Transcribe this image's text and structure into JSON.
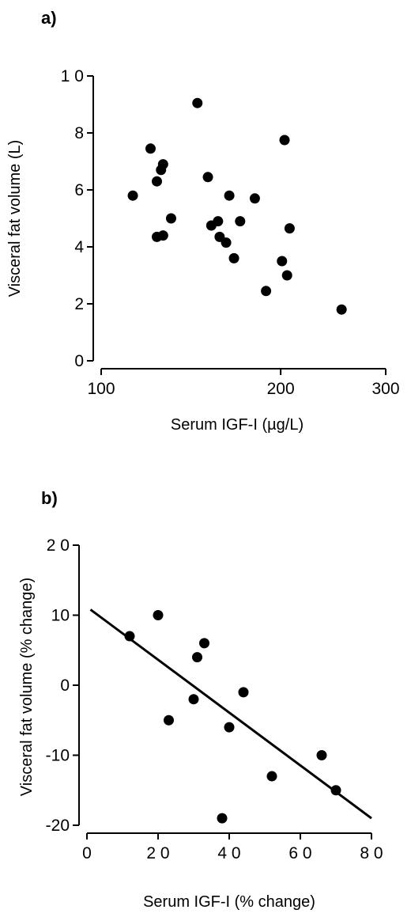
{
  "chart_data": [
    {
      "panel_label": "a)",
      "type": "scatter",
      "xlabel": "Serum IGF-I (µg/L)",
      "ylabel": "Visceral fat volume (L)",
      "xscale": "log",
      "xlim": [
        100,
        300
      ],
      "ylim": [
        0,
        10
      ],
      "xticks": [
        100,
        200,
        300
      ],
      "xtick_labels": [
        "100",
        "200",
        "300"
      ],
      "yticks": [
        0,
        2,
        4,
        6,
        8,
        10
      ],
      "ytick_labels": [
        "0",
        "2",
        "4",
        "6",
        "8",
        "1 0"
      ],
      "points": [
        [
          113,
          5.8
        ],
        [
          121,
          7.45
        ],
        [
          124,
          6.3
        ],
        [
          124,
          4.35
        ],
        [
          126,
          6.7
        ],
        [
          127,
          6.9
        ],
        [
          127,
          4.4
        ],
        [
          131,
          5.0
        ],
        [
          145,
          9.05
        ],
        [
          151,
          6.45
        ],
        [
          153,
          4.75
        ],
        [
          157,
          4.9
        ],
        [
          158,
          4.35
        ],
        [
          162,
          4.15
        ],
        [
          164,
          5.8
        ],
        [
          167,
          3.6
        ],
        [
          171,
          4.9
        ],
        [
          181,
          5.7
        ],
        [
          189,
          2.45
        ],
        [
          201,
          3.5
        ],
        [
          203,
          7.75
        ],
        [
          205,
          3.0
        ],
        [
          207,
          4.65
        ],
        [
          253,
          1.8
        ]
      ]
    },
    {
      "panel_label": "b)",
      "type": "scatter",
      "xlabel": "Serum IGF-I (% change)",
      "ylabel": "Visceral fat volume (% change)",
      "xlim": [
        0,
        80
      ],
      "ylim": [
        -20,
        20
      ],
      "xticks": [
        0,
        20,
        40,
        60,
        80
      ],
      "xtick_labels": [
        "0",
        "2 0",
        "4 0",
        "6 0",
        "8 0"
      ],
      "yticks": [
        -20,
        -10,
        0,
        10,
        20
      ],
      "ytick_labels": [
        "-20",
        "-10",
        "0",
        "10",
        "2 0"
      ],
      "points": [
        [
          12,
          7
        ],
        [
          20,
          10
        ],
        [
          23,
          -5
        ],
        [
          30,
          -2
        ],
        [
          31,
          4
        ],
        [
          33,
          6
        ],
        [
          38,
          -19
        ],
        [
          40,
          -6
        ],
        [
          44,
          -1
        ],
        [
          52,
          -13
        ],
        [
          66,
          -10
        ],
        [
          70,
          -15
        ]
      ],
      "regression_line": [
        [
          1,
          10.8
        ],
        [
          80,
          -19
        ]
      ]
    }
  ]
}
